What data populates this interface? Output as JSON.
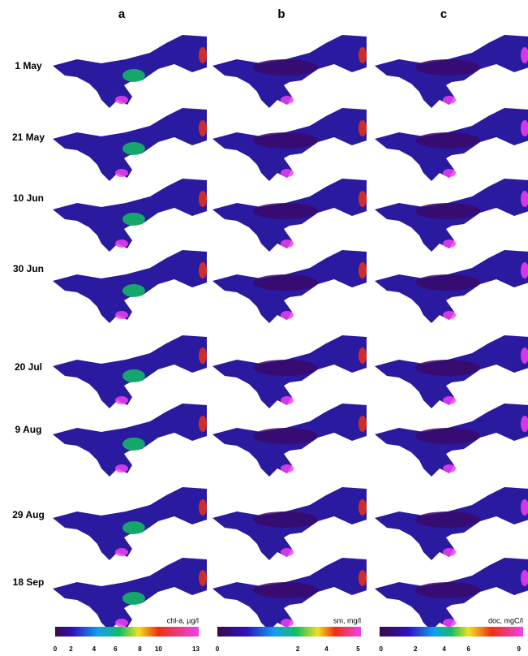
{
  "columns": [
    "a",
    "b",
    "c"
  ],
  "rows": [
    "1 May",
    "21 May",
    "10 Jun",
    "30 Jun",
    "20 Jul",
    "9 Aug",
    "29 Aug",
    "18 Sep"
  ],
  "colorbars": [
    {
      "label": "chl-a, µg/l",
      "ticks": [
        0,
        2,
        4,
        6,
        8,
        10,
        13
      ]
    },
    {
      "label": "sm, mg/l",
      "ticks": [
        0,
        2,
        4,
        5
      ]
    },
    {
      "label": "doc, mgC/l",
      "ticks": [
        0,
        2,
        4,
        6,
        9
      ]
    }
  ]
}
